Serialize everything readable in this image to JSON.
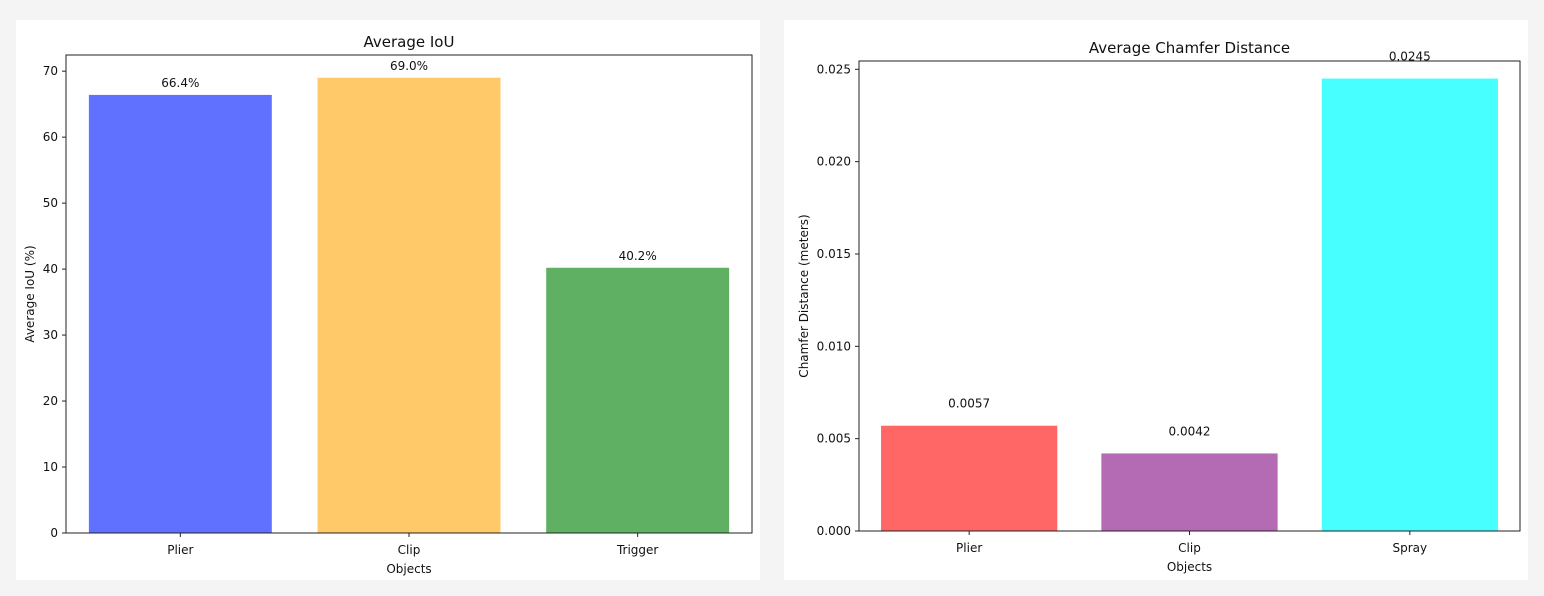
{
  "chart_data": [
    {
      "type": "bar",
      "title": "Average IoU",
      "xlabel": "Objects",
      "ylabel": "Average IoU (%)",
      "categories": [
        "Plier",
        "Clip",
        "Trigger"
      ],
      "values": [
        66.4,
        69.0,
        40.2
      ],
      "value_labels": [
        "66.4%",
        "69.0%",
        "40.2%"
      ],
      "colors": [
        "#6070ff",
        "#ffc96a",
        "#60b064"
      ],
      "ylim": [
        0,
        72.45
      ],
      "yticks": [
        0,
        10,
        20,
        30,
        40,
        50,
        60,
        70
      ],
      "ytick_labels": [
        "0",
        "10",
        "20",
        "30",
        "40",
        "50",
        "60",
        "70"
      ],
      "grid": false,
      "legend": "none"
    },
    {
      "type": "bar",
      "title": "Average Chamfer Distance",
      "xlabel": "Objects",
      "ylabel": "Chamfer Distance (meters)",
      "categories": [
        "Plier",
        "Clip",
        "Spray"
      ],
      "values": [
        0.0057,
        0.0042,
        0.0245
      ],
      "value_labels": [
        "0.0057",
        "0.0042",
        "0.0245"
      ],
      "colors": [
        "#ff6666",
        "#b46bb4",
        "#48ffff"
      ],
      "ylim": [
        0,
        0.02545
      ],
      "yticks": [
        0,
        0.005,
        0.01,
        0.015,
        0.02,
        0.025
      ],
      "ytick_labels": [
        "0.000",
        "0.005",
        "0.010",
        "0.015",
        "0.020",
        "0.025"
      ],
      "grid": false,
      "legend": "none"
    }
  ]
}
